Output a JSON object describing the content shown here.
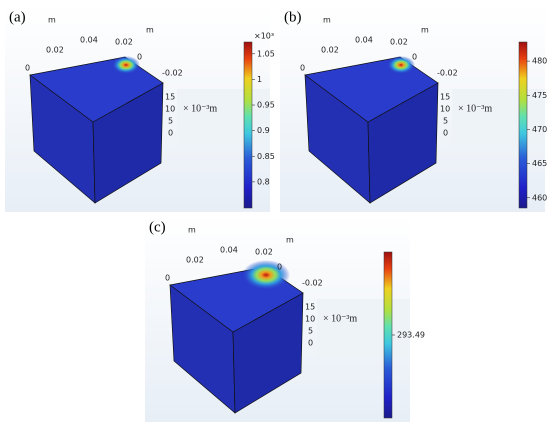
{
  "panels": [
    {
      "label": "(a)",
      "axis_texts": [
        "m",
        "0.04",
        "0.02",
        "0.02",
        "0",
        "m",
        "0",
        "-0.02",
        "15",
        "10",
        "5",
        "0"
      ],
      "unit": "× 10⁻³m",
      "colorbar": {
        "exponent": "×10³",
        "lim": [
          0.749,
          1.073
        ],
        "ticks": [
          1.05,
          1,
          0.95,
          0.9,
          0.85,
          0.8
        ]
      }
    },
    {
      "label": "(b)",
      "axis_texts": [
        "m",
        "0.04",
        "0.02",
        "0.02",
        "0",
        "m",
        "0",
        "-0.02",
        "15",
        "10",
        "5",
        "0"
      ],
      "unit": "× 10⁻³m",
      "colorbar": {
        "lim": [
          458.5,
          482.8
        ],
        "ticks": [
          480,
          475,
          470,
          465,
          460
        ]
      }
    },
    {
      "label": "(c)",
      "axis_texts": [
        "m",
        "0.04",
        "0.02",
        "0.02",
        "0",
        "m",
        "0",
        "-0.02",
        "15",
        "10",
        "5",
        "0"
      ],
      "unit": "× 10⁻³m",
      "colorbar": {
        "lim": [
          293.3,
          293.68
        ],
        "ticks": [
          293.49
        ]
      }
    }
  ]
}
